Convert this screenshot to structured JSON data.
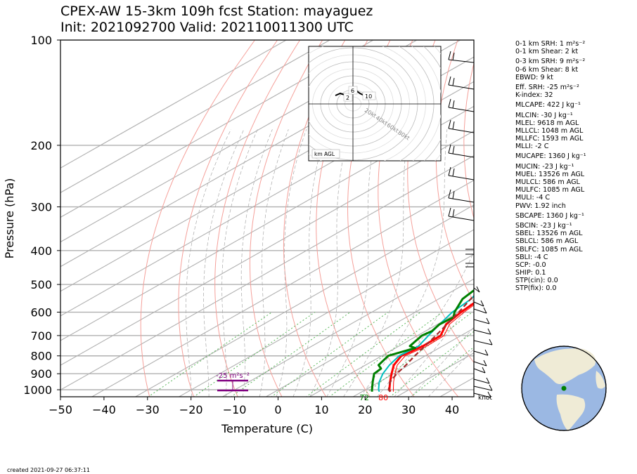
{
  "title_line1": "CPEX-AW 15-3km  109h fcst  Station: mayaguez",
  "title_line2": "Init: 2021092700  Valid: 202110011300 UTC",
  "created": "created 2021-09-27 06:37:11",
  "stats": [
    "0-1 km SRH: 1 m²s⁻²",
    "0-1 km Shear: 2 kt",
    "0-3 km SRH: 9 m²s⁻²",
    "0-6 km Shear: 8 kt",
    "EBWD: 9 kt",
    "Eff. SRH: -25 m²s⁻²",
    "K-index: 32",
    "MLCAPE: 422 J kg⁻¹",
    "MLCIN: -30 J kg⁻¹",
    "MLEL: 9618 m AGL",
    "MLLCL: 1048 m AGL",
    "MLLFC: 1593 m AGL",
    "MLLI: -2 C",
    "MUCAPE: 1360 J kg⁻¹",
    "MUCIN: -23 J kg⁻¹",
    "MUEL: 13526 m AGL",
    "MULCL: 586 m AGL",
    "MULFC: 1085 m AGL",
    "MULI: -4 C",
    "PWV: 1.92 inch",
    "SBCAPE: 1360 J kg⁻¹",
    "SBCIN: -23 J kg⁻¹",
    "SBEL: 13526 m AGL",
    "SBLCL: 586 m AGL",
    "SBLFC: 1085 m AGL",
    "SBLI: -4 C",
    "SCP: -0.0",
    "SHIP: 0.1",
    "STP(cin): 0.0",
    "STP(fix): 0.0"
  ],
  "chart_data": {
    "type": "line",
    "subtype": "skew-T log-P",
    "xlabel": "Temperature (C)",
    "ylabel": "Pressure (hPa)",
    "xlim": [
      -50,
      45
    ],
    "ylim": [
      1050,
      100
    ],
    "y_scale": "log",
    "x_ticks": [
      -50,
      -40,
      -30,
      -20,
      -10,
      0,
      10,
      20,
      30,
      40
    ],
    "y_ticks": [
      1000,
      900,
      800,
      700,
      600,
      500,
      400,
      300,
      200,
      100
    ],
    "grid": true,
    "surface_labels": {
      "dewpoint_f": "72",
      "temperature_f": "80"
    },
    "srh_label": "-25 m²s⁻²",
    "wind_units": "knot",
    "series": [
      {
        "name": "Temperature",
        "color": "#ff0000",
        "p": [
          1013,
          1000,
          950,
          900,
          850,
          800,
          750,
          700,
          650,
          600,
          550,
          500,
          450,
          400,
          350,
          300,
          250,
          200,
          150,
          100
        ],
        "t": [
          26.5,
          25.5,
          22.5,
          19.5,
          16.5,
          14.5,
          15.5,
          15.3,
          12.0,
          10.5,
          9.5,
          6.5,
          3.0,
          -1.5,
          -7.0,
          -13.5,
          -21.5,
          -31.0,
          -43.0,
          -62.0
        ]
      },
      {
        "name": "Virtual temperature",
        "color": "#ff0000",
        "p": [
          1013,
          950,
          900,
          850,
          800,
          750,
          700,
          650,
          600,
          550,
          500,
          450,
          400
        ],
        "t": [
          27.2,
          23.3,
          20.3,
          17.3,
          15.4,
          16.4,
          16.1,
          12.8,
          11.2,
          10.1,
          7.0,
          3.4,
          -1.2
        ]
      },
      {
        "name": "Wet-bulb temperature",
        "color": "#00bfbf",
        "p": [
          1013,
          1000,
          950,
          900,
          850,
          800,
          750,
          700,
          650,
          600,
          550,
          500,
          450,
          400,
          350,
          300,
          250,
          200,
          150,
          100
        ],
        "t": [
          24.0,
          23.0,
          20.0,
          17.5,
          15.5,
          14.0,
          14.5,
          12.5,
          10.5,
          8.5,
          7.5,
          4.5,
          0.5,
          -4.0,
          -9.0,
          -15.0,
          -23.0,
          -33.0,
          -45.0,
          -64.0
        ]
      },
      {
        "name": "Dewpoint",
        "color": "#008000",
        "p": [
          1013,
          1000,
          950,
          900,
          870,
          850,
          800,
          760,
          750,
          700,
          680,
          650,
          620,
          600,
          550,
          500,
          450,
          400,
          350,
          300,
          250,
          200,
          150,
          100
        ],
        "t": [
          22.3,
          21.5,
          18.5,
          15.5,
          15.0,
          13.0,
          11.5,
          14.5,
          12.5,
          11.0,
          11.5,
          10.5,
          10.8,
          9.0,
          5.5,
          4.0,
          0.0,
          -6.0,
          -12.0,
          -18.0,
          -28.0,
          -40.0,
          -53.0,
          -72.0
        ]
      },
      {
        "name": "Parcel profile",
        "color": "#a52a2a",
        "p": [
          1013,
          1000,
          950,
          900,
          850,
          800,
          700,
          600,
          500,
          400,
          300,
          200,
          100
        ],
        "t": [
          26.5,
          25.3,
          22.5,
          20.7,
          19.3,
          17.6,
          14.2,
          10.0,
          4.5,
          -3.5,
          -15.0,
          -36.0,
          -75.0
        ]
      }
    ],
    "hodograph": {
      "ring_labels": [
        "20kt",
        "40kt",
        "60kt",
        "80kt"
      ],
      "height_labels": [
        "2",
        "6",
        "10"
      ],
      "corner_label": "km AGL"
    }
  }
}
